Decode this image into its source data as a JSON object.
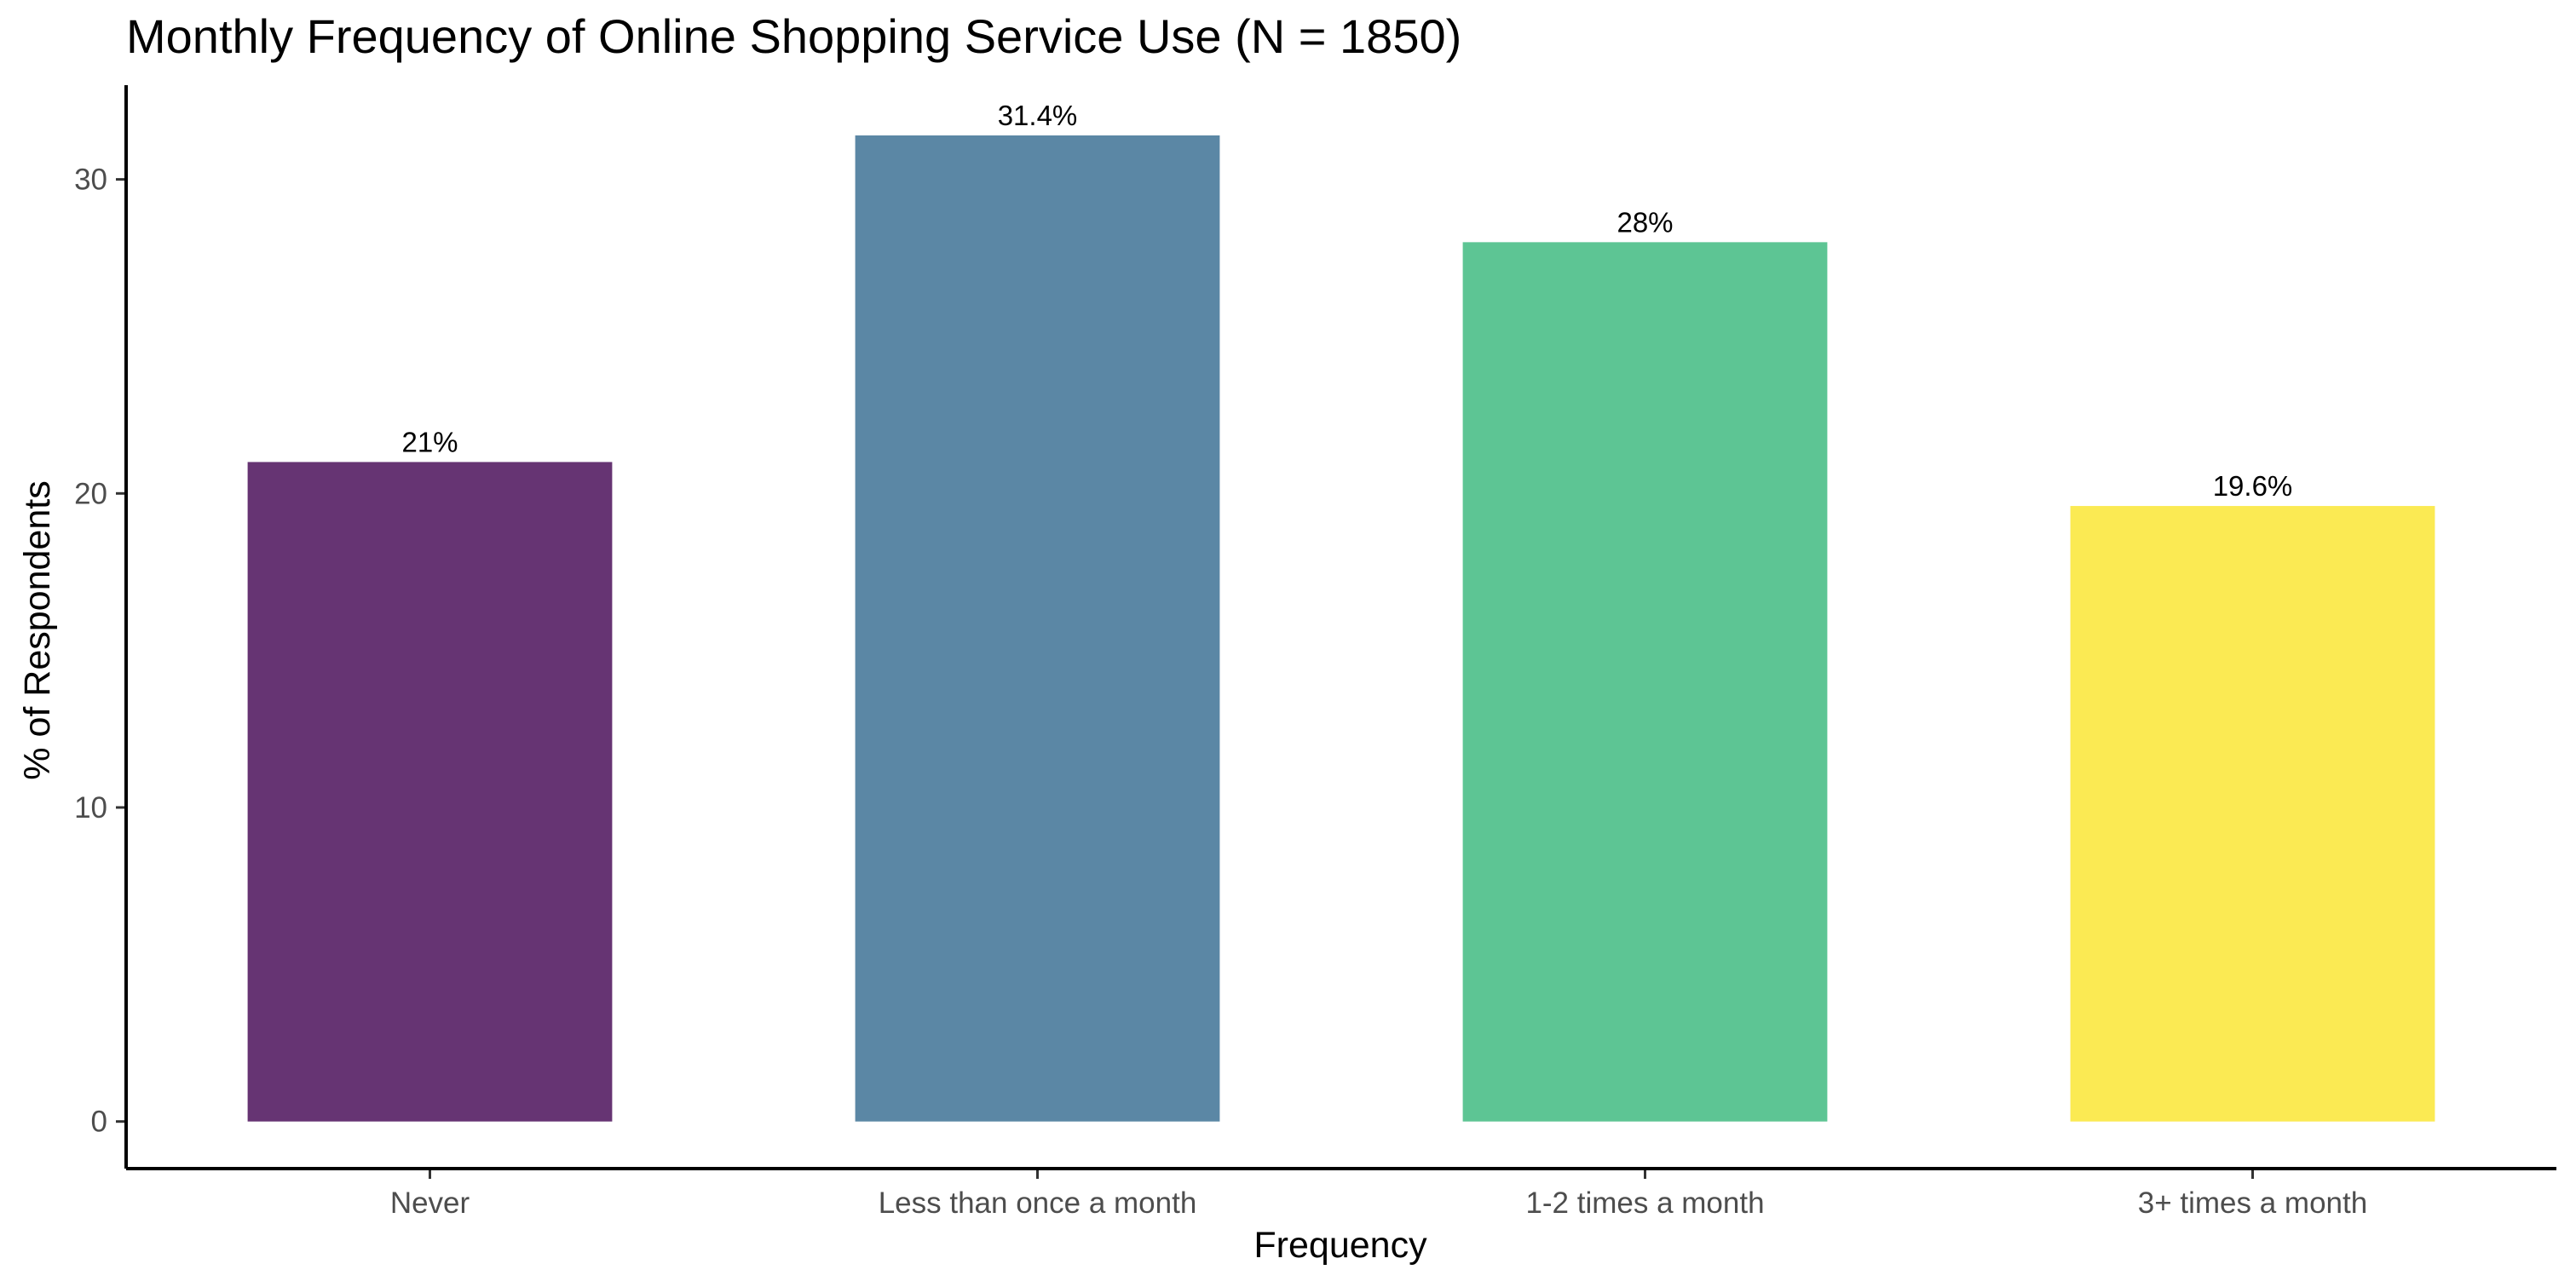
{
  "chart_data": {
    "type": "bar",
    "title": "Monthly Frequency of Online Shopping Service Use (N = 1850)",
    "xlabel": "Frequency",
    "ylabel": "% of Respondents",
    "categories": [
      "Never",
      "Less than once a month",
      "1-2 times a month",
      "3+ times a month"
    ],
    "values": [
      21.0,
      31.4,
      28.0,
      19.6
    ],
    "data_labels": [
      "21%",
      "31.4%",
      "28%",
      "19.6%"
    ],
    "colors": [
      "#663473",
      "#5B87A5",
      "#5DC594",
      "#FBEA53"
    ],
    "y_ticks": [
      0,
      10,
      20,
      30
    ],
    "ylim": [
      -1.5,
      33
    ],
    "grid": false,
    "legend": "none"
  }
}
